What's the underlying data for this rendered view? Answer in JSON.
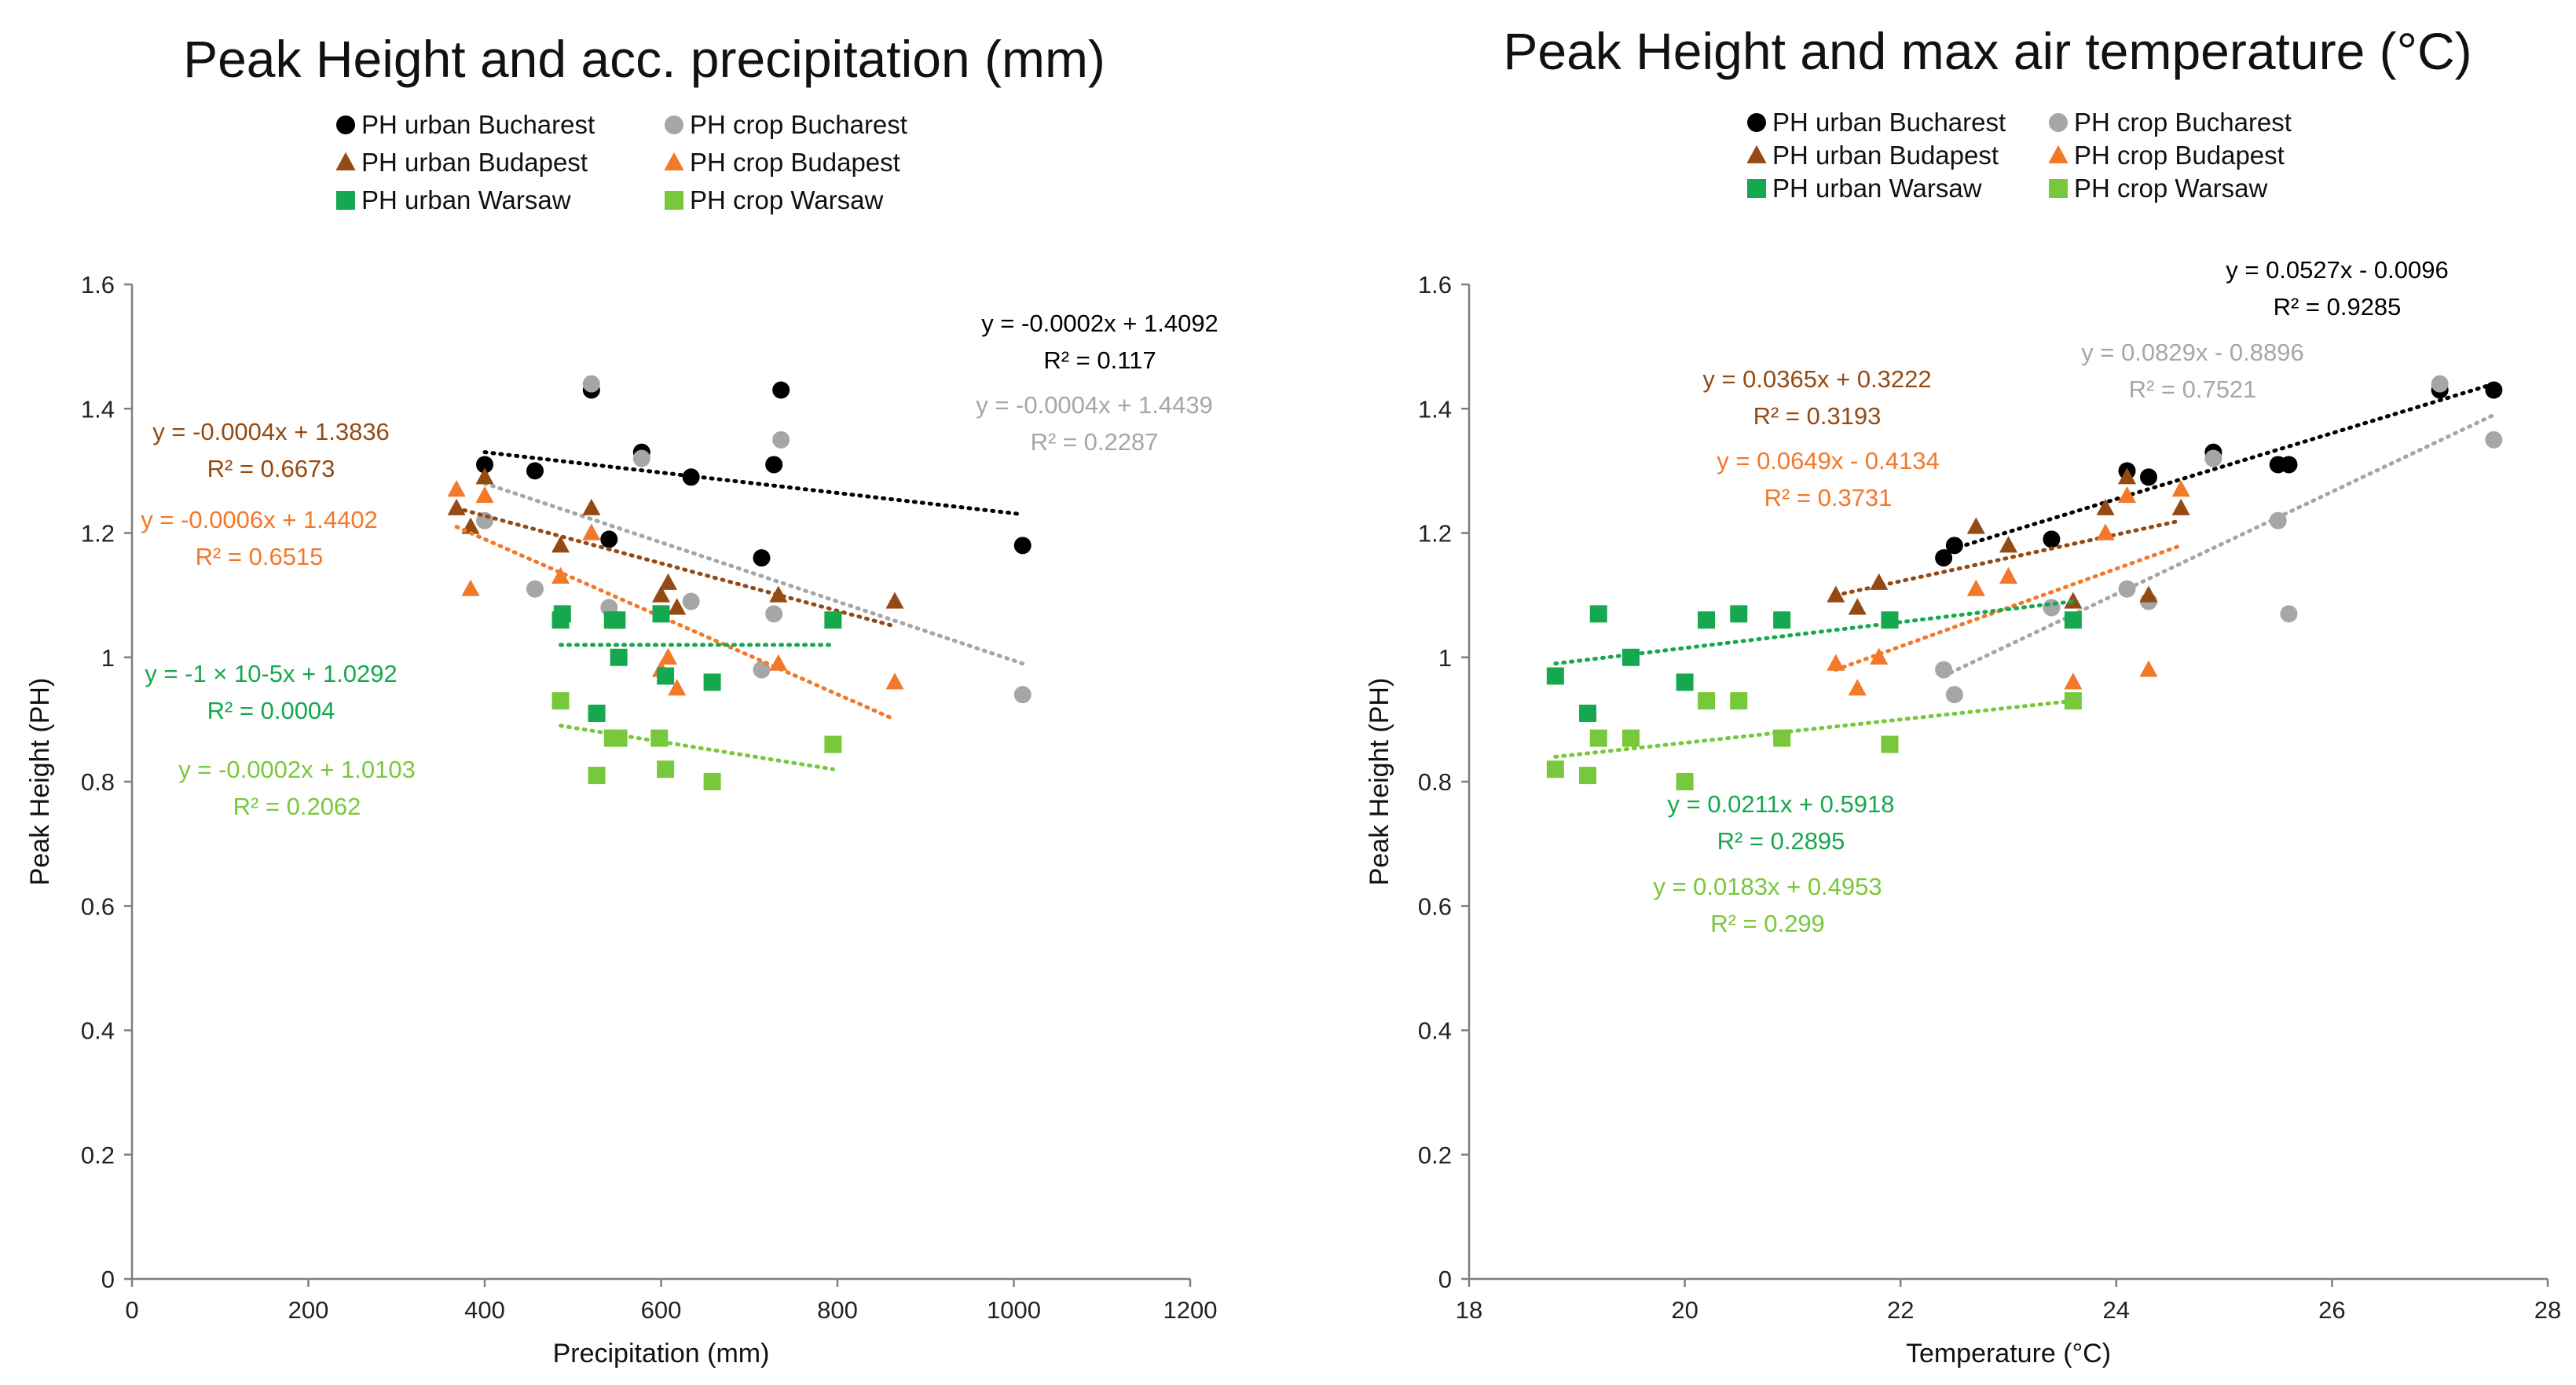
{
  "chart_data": [
    {
      "type": "scatter",
      "title": "Peak Height and acc. precipitation (mm)",
      "xlabel": "Precipitation (mm)",
      "ylabel": "Peak Height (PH)",
      "xlim": [
        0,
        1200
      ],
      "ylim": [
        0,
        1.6
      ],
      "xticks": [
        "0",
        "200",
        "400",
        "600",
        "800",
        "1000",
        "1200"
      ],
      "yticks": [
        "0",
        "0.2",
        "0.4",
        "0.6",
        "0.8",
        "1",
        "1.2",
        "1.4",
        "1.6"
      ],
      "legend": [
        "PH urban Bucharest",
        "PH crop Bucharest",
        "PH urban Budapest",
        "PH crop Budapest",
        "PH urban Warsaw",
        "PH crop Warsaw"
      ],
      "series": [
        {
          "name": "PH urban Bucharest",
          "color": "#000000",
          "marker": "circle",
          "x": [
            400,
            457,
            521,
            541,
            578,
            634,
            714,
            728,
            736,
            1010
          ],
          "y": [
            1.31,
            1.3,
            1.43,
            1.19,
            1.33,
            1.29,
            1.16,
            1.31,
            1.43,
            1.18
          ],
          "trend": {
            "slope": -0.0002,
            "intercept": 1.4092,
            "x": [
              400,
              1010
            ],
            "y": [
              1.33,
              1.23
            ]
          }
        },
        {
          "name": "PH crop Bucharest",
          "color": "#a6a6a6",
          "marker": "circle",
          "x": [
            400,
            457,
            521,
            541,
            578,
            634,
            714,
            728,
            736,
            1010
          ],
          "y": [
            1.22,
            1.11,
            1.44,
            1.08,
            1.32,
            1.09,
            0.98,
            1.07,
            1.35,
            0.94
          ],
          "trend": {
            "slope": -0.0004,
            "intercept": 1.4439,
            "x": [
              400,
              1010
            ],
            "y": [
              1.28,
              0.99
            ]
          }
        },
        {
          "name": "PH urban Budapest",
          "color": "#954a14",
          "marker": "triangle",
          "x": [
            368,
            384,
            400,
            486,
            521,
            600,
            608,
            618,
            733,
            865
          ],
          "y": [
            1.24,
            1.21,
            1.29,
            1.18,
            1.24,
            1.1,
            1.12,
            1.08,
            1.1,
            1.09
          ],
          "trend": {
            "slope": -0.0004,
            "intercept": 1.3836,
            "x": [
              368,
              865
            ],
            "y": [
              1.24,
              1.05
            ]
          }
        },
        {
          "name": "PH crop Budapest",
          "color": "#f2782a",
          "marker": "triangle",
          "x": [
            368,
            384,
            400,
            486,
            521,
            600,
            608,
            618,
            733,
            865
          ],
          "y": [
            1.27,
            1.11,
            1.26,
            1.13,
            1.2,
            0.98,
            1.0,
            0.95,
            0.99,
            0.96
          ],
          "trend": {
            "slope": -0.0006,
            "intercept": 1.4402,
            "x": [
              368,
              865
            ],
            "y": [
              1.21,
              0.9
            ]
          }
        },
        {
          "name": "PH urban Warsaw",
          "color": "#16a84e",
          "marker": "square",
          "x": [
            486,
            488,
            527,
            545,
            550,
            552,
            600,
            605,
            658,
            795
          ],
          "y": [
            1.06,
            1.07,
            0.91,
            1.06,
            1.06,
            1.0,
            1.07,
            0.97,
            0.96,
            1.06
          ],
          "trend": {
            "slope": -1e-05,
            "intercept": 1.0292,
            "x": [
              486,
              795
            ],
            "y": [
              1.02,
              1.02
            ]
          }
        },
        {
          "name": "PH crop Warsaw",
          "color": "#78c83c",
          "marker": "square",
          "x": [
            486,
            527,
            545,
            552,
            598,
            605,
            658,
            795
          ],
          "y": [
            0.93,
            0.81,
            0.87,
            0.87,
            0.87,
            0.82,
            0.8,
            0.86
          ],
          "trend": {
            "slope": -0.0002,
            "intercept": 1.0103,
            "x": [
              486,
              795
            ],
            "y": [
              0.89,
              0.82
            ]
          }
        }
      ],
      "annotations": [
        {
          "series": 0,
          "eq": "y = -0.0002x + 1.4092",
          "r2": "R² = 0.117"
        },
        {
          "series": 1,
          "eq": "y = -0.0004x + 1.4439",
          "r2": "R² = 0.2287"
        },
        {
          "series": 2,
          "eq": "y = -0.0004x + 1.3836",
          "r2": "R² = 0.6673"
        },
        {
          "series": 3,
          "eq": "y = -0.0006x + 1.4402",
          "r2": "R² = 0.6515"
        },
        {
          "series": 4,
          "eq": "y = -1 × 10-5x + 1.0292",
          "r2": "R² = 0.0004"
        },
        {
          "series": 5,
          "eq": "y = -0.0002x + 1.0103",
          "r2": "R² = 0.2062"
        }
      ]
    },
    {
      "type": "scatter",
      "title": "Peak Height and max air temperature (°C)",
      "xlabel": "Temperature (°C)",
      "ylabel": "Peak Height (PH)",
      "xlim": [
        18,
        28
      ],
      "ylim": [
        0,
        1.6
      ],
      "xticks": [
        "18",
        "20",
        "22",
        "24",
        "26",
        "28"
      ],
      "yticks": [
        "0",
        "0.2",
        "0.4",
        "0.6",
        "0.8",
        "1",
        "1.2",
        "1.4",
        "1.6"
      ],
      "legend": [
        "PH urban Bucharest",
        "PH crop Bucharest",
        "PH urban Budapest",
        "PH crop Budapest",
        "PH urban Warsaw",
        "PH crop Warsaw"
      ],
      "series": [
        {
          "name": "PH urban Bucharest",
          "color": "#000000",
          "marker": "circle",
          "x": [
            22.4,
            22.5,
            23.4,
            24.1,
            24.3,
            24.9,
            25.5,
            25.6,
            27.0,
            27.5
          ],
          "y": [
            1.16,
            1.18,
            1.19,
            1.3,
            1.29,
            1.33,
            1.31,
            1.31,
            1.43,
            1.43
          ],
          "trend": {
            "slope": 0.0527,
            "intercept": -0.0096,
            "x": [
              22.4,
              27.5
            ],
            "y": [
              1.17,
              1.44
            ]
          }
        },
        {
          "name": "PH crop Bucharest",
          "color": "#a6a6a6",
          "marker": "circle",
          "x": [
            22.4,
            22.5,
            23.4,
            24.1,
            24.3,
            24.9,
            25.5,
            25.6,
            27.0,
            27.5
          ],
          "y": [
            0.98,
            0.94,
            1.08,
            1.11,
            1.09,
            1.32,
            1.22,
            1.07,
            1.44,
            1.35
          ],
          "trend": {
            "slope": 0.0829,
            "intercept": -0.8896,
            "x": [
              22.4,
              27.5
            ],
            "y": [
              0.97,
              1.39
            ]
          }
        },
        {
          "name": "PH urban Budapest",
          "color": "#954a14",
          "marker": "triangle",
          "x": [
            21.4,
            21.6,
            21.8,
            22.7,
            23.0,
            23.6,
            23.9,
            24.1,
            24.3,
            24.6
          ],
          "y": [
            1.1,
            1.08,
            1.12,
            1.21,
            1.18,
            1.09,
            1.24,
            1.29,
            1.1,
            1.24
          ],
          "trend": {
            "slope": 0.0365,
            "intercept": 0.3222,
            "x": [
              21.4,
              24.6
            ],
            "y": [
              1.1,
              1.22
            ]
          }
        },
        {
          "name": "PH crop Budapest",
          "color": "#f2782a",
          "marker": "triangle",
          "x": [
            21.4,
            21.6,
            21.8,
            22.7,
            23.0,
            23.6,
            23.9,
            24.1,
            24.3,
            24.6
          ],
          "y": [
            0.99,
            0.95,
            1.0,
            1.11,
            1.13,
            0.96,
            1.2,
            1.26,
            0.98,
            1.27
          ],
          "trend": {
            "slope": 0.0649,
            "intercept": -0.4134,
            "x": [
              21.4,
              24.6
            ],
            "y": [
              0.98,
              1.18
            ]
          }
        },
        {
          "name": "PH urban Warsaw",
          "color": "#16a84e",
          "marker": "square",
          "x": [
            18.8,
            19.1,
            19.2,
            19.5,
            20.0,
            20.2,
            20.5,
            20.9,
            21.9,
            23.6
          ],
          "y": [
            0.97,
            0.91,
            1.07,
            1.0,
            0.96,
            1.06,
            1.07,
            1.06,
            1.06,
            1.06
          ],
          "trend": {
            "slope": 0.0211,
            "intercept": 0.5918,
            "x": [
              18.8,
              23.6
            ],
            "y": [
              0.99,
              1.09
            ]
          }
        },
        {
          "name": "PH crop Warsaw",
          "color": "#78c83c",
          "marker": "square",
          "x": [
            18.8,
            19.1,
            19.2,
            19.5,
            20.0,
            20.2,
            20.5,
            20.9,
            21.9,
            23.6
          ],
          "y": [
            0.82,
            0.81,
            0.87,
            0.87,
            0.8,
            0.93,
            0.93,
            0.87,
            0.86,
            0.93
          ],
          "trend": {
            "slope": 0.0183,
            "intercept": 0.4953,
            "x": [
              18.8,
              23.6
            ],
            "y": [
              0.84,
              0.93
            ]
          }
        }
      ],
      "annotations": [
        {
          "series": 0,
          "eq": "y = 0.0527x - 0.0096",
          "r2": "R² = 0.9285"
        },
        {
          "series": 1,
          "eq": "y = 0.0829x - 0.8896",
          "r2": "R² = 0.7521"
        },
        {
          "series": 2,
          "eq": "y = 0.0365x + 0.3222",
          "r2": "R² = 0.3193"
        },
        {
          "series": 3,
          "eq": "y = 0.0649x - 0.4134",
          "r2": "R² = 0.3731"
        },
        {
          "series": 4,
          "eq": "y = 0.0211x + 0.5918",
          "r2": "R² = 0.2895"
        },
        {
          "series": 5,
          "eq": "y = 0.0183x + 0.4953",
          "r2": "R² = 0.299"
        }
      ]
    }
  ]
}
